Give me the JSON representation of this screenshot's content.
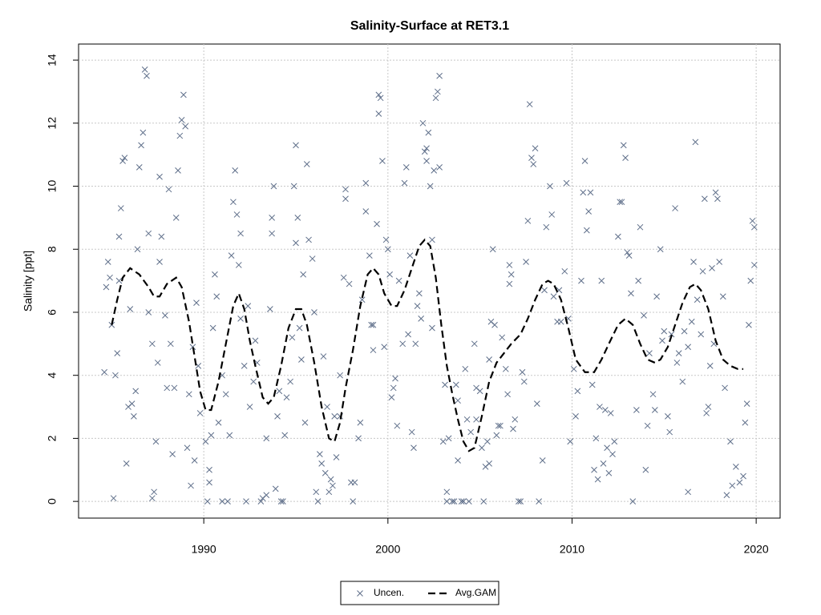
{
  "chart_data": {
    "type": "scatter",
    "title": "Salinity-Surface at RET3.1",
    "y_label": "Salinity [ppt]",
    "xlim": [
      1983.2,
      2021.3
    ],
    "ylim": [
      -0.53,
      14.51
    ],
    "xticks": [
      1990,
      2000,
      2010,
      2020
    ],
    "yticks": [
      0,
      2,
      4,
      6,
      8,
      10,
      12,
      14
    ],
    "grid": true,
    "legend": "bottom",
    "series": [
      {
        "name": "Uncen.",
        "type": "scatter",
        "color": "#5f6f8a",
        "x": [
          1984.6,
          1984.7,
          1984.8,
          1984.9,
          1985.0,
          1985.1,
          1985.2,
          1985.3,
          1985.4,
          1985.4,
          1985.5,
          1985.6,
          1985.7,
          1985.8,
          1985.9,
          1986.0,
          1986.1,
          1986.2,
          1986.3,
          1986.4,
          1986.5,
          1986.6,
          1986.7,
          1986.8,
          1986.9,
          1987.0,
          1987.0,
          1987.2,
          1987.2,
          1987.3,
          1987.4,
          1987.5,
          1987.6,
          1987.6,
          1987.7,
          1987.9,
          1988.0,
          1988.1,
          1988.2,
          1988.3,
          1988.4,
          1988.5,
          1988.6,
          1988.7,
          1988.8,
          1988.9,
          1989.0,
          1989.1,
          1989.2,
          1989.3,
          1989.4,
          1989.5,
          1989.6,
          1989.7,
          1989.8,
          1990.1,
          1990.2,
          1990.3,
          1990.3,
          1990.4,
          1990.5,
          1990.6,
          1990.7,
          1990.8,
          1991.0,
          1991.0,
          1991.2,
          1991.3,
          1991.4,
          1991.5,
          1991.6,
          1991.7,
          1991.8,
          1991.9,
          1992.0,
          1992.0,
          1992.2,
          1992.3,
          1992.4,
          1992.5,
          1992.7,
          1992.8,
          1992.9,
          1993.1,
          1993.2,
          1993.4,
          1993.4,
          1993.6,
          1993.7,
          1993.7,
          1993.8,
          1993.9,
          1994.0,
          1994.1,
          1994.2,
          1994.3,
          1994.4,
          1994.5,
          1994.7,
          1994.8,
          1994.9,
          1995.0,
          1995.0,
          1995.1,
          1995.2,
          1995.3,
          1995.4,
          1995.5,
          1995.6,
          1995.7,
          1995.9,
          1996.0,
          1996.1,
          1996.2,
          1996.3,
          1996.4,
          1996.5,
          1996.6,
          1996.7,
          1996.8,
          1996.9,
          1997.0,
          1997.1,
          1997.2,
          1997.4,
          1997.4,
          1997.6,
          1997.7,
          1997.7,
          1997.9,
          1998.0,
          1998.1,
          1998.2,
          1998.4,
          1998.5,
          1998.6,
          1998.8,
          1998.8,
          1999.0,
          1999.1,
          1999.2,
          1999.2,
          1999.4,
          1999.5,
          1999.5,
          1999.6,
          1999.7,
          1999.8,
          1999.9,
          2000.0,
          2000.1,
          2000.2,
          2000.3,
          2000.4,
          2000.5,
          2000.6,
          2000.8,
          2000.9,
          2001.0,
          2001.1,
          2001.2,
          2001.3,
          2001.4,
          2001.5,
          2001.6,
          2001.7,
          2001.8,
          2001.9,
          2002.0,
          2002.1,
          2002.1,
          2002.2,
          2002.3,
          2002.4,
          2002.4,
          2002.5,
          2002.6,
          2002.7,
          2002.8,
          2002.8,
          2003.0,
          2003.1,
          2003.2,
          2003.2,
          2003.3,
          2003.5,
          2003.6,
          2003.7,
          2003.8,
          2003.8,
          2004.0,
          2004.1,
          2004.2,
          2004.3,
          2004.4,
          2004.5,
          2004.7,
          2004.8,
          2004.8,
          2005.0,
          2005.1,
          2005.2,
          2005.3,
          2005.4,
          2005.5,
          2005.5,
          2005.6,
          2005.7,
          2005.8,
          2005.9,
          2006.0,
          2006.1,
          2006.2,
          2006.4,
          2006.5,
          2006.6,
          2006.6,
          2006.7,
          2006.8,
          2006.9,
          2007.1,
          2007.2,
          2007.3,
          2007.4,
          2007.5,
          2007.6,
          2007.7,
          2007.8,
          2007.9,
          2008.0,
          2008.1,
          2008.2,
          2008.4,
          2008.5,
          2008.6,
          2008.8,
          2008.9,
          2009.0,
          2009.2,
          2009.3,
          2009.4,
          2009.6,
          2009.7,
          2009.8,
          2009.9,
          2010.1,
          2010.2,
          2010.3,
          2010.5,
          2010.6,
          2010.7,
          2010.8,
          2010.9,
          2011.0,
          2011.1,
          2011.2,
          2011.3,
          2011.4,
          2011.5,
          2011.6,
          2011.7,
          2011.8,
          2011.9,
          2012.0,
          2012.1,
          2012.2,
          2012.3,
          2012.5,
          2012.6,
          2012.7,
          2012.8,
          2012.9,
          2013.0,
          2013.1,
          2013.2,
          2013.3,
          2013.5,
          2013.6,
          2013.7,
          2013.9,
          2014.0,
          2014.1,
          2014.2,
          2014.4,
          2014.5,
          2014.6,
          2014.8,
          2014.9,
          2015.0,
          2015.2,
          2015.3,
          2015.4,
          2015.6,
          2015.7,
          2015.8,
          2016.0,
          2016.1,
          2016.3,
          2016.3,
          2016.5,
          2016.6,
          2016.7,
          2016.8,
          2017.0,
          2017.1,
          2017.2,
          2017.3,
          2017.4,
          2017.5,
          2017.6,
          2017.7,
          2017.8,
          2017.9,
          2018.0,
          2018.2,
          2018.3,
          2018.4,
          2018.6,
          2018.7,
          2018.9,
          2019.1,
          2019.3,
          2019.4,
          2019.5,
          2019.6,
          2019.7,
          2019.8,
          2019.9,
          2019.9
        ],
        "values": [
          4.1,
          6.8,
          7.6,
          7.1,
          5.6,
          0.1,
          4.0,
          4.7,
          8.4,
          7.0,
          9.3,
          10.8,
          10.9,
          1.2,
          3.0,
          6.1,
          3.1,
          2.7,
          3.5,
          8.0,
          10.6,
          11.3,
          11.7,
          13.7,
          13.5,
          8.5,
          6.0,
          5.0,
          0.1,
          0.3,
          1.9,
          4.4,
          7.6,
          10.3,
          8.4,
          5.9,
          3.6,
          9.9,
          5.0,
          1.5,
          3.6,
          9.0,
          10.5,
          11.6,
          12.1,
          12.9,
          11.9,
          1.7,
          3.4,
          0.5,
          4.9,
          1.3,
          6.3,
          4.3,
          2.8,
          1.9,
          0.0,
          1.0,
          0.6,
          2.1,
          5.5,
          7.2,
          6.5,
          2.5,
          0.0,
          4.0,
          3.4,
          0.0,
          2.1,
          7.8,
          9.5,
          10.5,
          9.1,
          7.5,
          5.8,
          8.5,
          4.3,
          0.0,
          6.2,
          3.0,
          3.8,
          5.1,
          4.4,
          0.0,
          0.1,
          0.2,
          2.0,
          6.1,
          9.0,
          8.5,
          10.0,
          0.4,
          2.7,
          3.5,
          0.0,
          0.0,
          2.1,
          3.3,
          3.8,
          5.2,
          10.0,
          11.3,
          8.2,
          9.0,
          5.5,
          4.5,
          7.2,
          2.5,
          10.7,
          8.3,
          7.7,
          6.0,
          0.3,
          0.0,
          1.5,
          1.2,
          4.6,
          0.9,
          3.0,
          0.3,
          0.7,
          0.5,
          2.7,
          1.4,
          4.0,
          2.7,
          7.1,
          9.9,
          9.6,
          6.9,
          0.6,
          0.0,
          0.6,
          2.0,
          2.5,
          6.4,
          9.2,
          10.1,
          7.8,
          5.6,
          5.6,
          4.8,
          8.8,
          12.3,
          12.9,
          12.8,
          10.8,
          4.9,
          8.3,
          8.0,
          7.2,
          3.3,
          3.6,
          3.9,
          2.4,
          7.0,
          5.0,
          10.1,
          10.6,
          5.3,
          7.8,
          2.2,
          1.7,
          5.0,
          6.2,
          6.6,
          5.8,
          12.0,
          11.1,
          10.8,
          11.2,
          11.7,
          10.0,
          5.5,
          8.3,
          10.5,
          12.8,
          13.0,
          13.5,
          10.6,
          1.9,
          3.7,
          0.3,
          0.0,
          2.0,
          0.0,
          0.0,
          3.7,
          1.3,
          3.2,
          0.0,
          0.0,
          4.2,
          2.6,
          0.0,
          2.2,
          5.0,
          3.6,
          2.6,
          3.5,
          1.7,
          0.0,
          1.1,
          1.9,
          1.2,
          4.5,
          5.7,
          8.0,
          5.6,
          2.1,
          2.4,
          2.4,
          5.2,
          4.2,
          3.4,
          7.5,
          6.9,
          7.2,
          2.3,
          2.6,
          0.0,
          0.0,
          4.1,
          3.8,
          7.6,
          8.9,
          12.6,
          10.9,
          10.7,
          11.2,
          3.1,
          0.0,
          1.3,
          6.7,
          8.7,
          10.0,
          9.1,
          6.5,
          5.7,
          6.7,
          5.7,
          7.3,
          10.1,
          5.8,
          1.9,
          4.2,
          2.7,
          3.5,
          7.0,
          9.8,
          10.8,
          8.6,
          9.2,
          9.8,
          3.7,
          1.0,
          2.0,
          0.7,
          3.0,
          7.0,
          1.2,
          2.9,
          1.7,
          0.9,
          2.8,
          1.5,
          1.9,
          8.4,
          9.5,
          9.5,
          11.3,
          10.9,
          7.9,
          7.8,
          6.6,
          0.0,
          2.9,
          7.0,
          8.7,
          5.9,
          1.0,
          2.4,
          4.7,
          3.4,
          2.9,
          6.5,
          8.0,
          5.1,
          5.4,
          2.7,
          2.2,
          5.3,
          9.3,
          4.4,
          4.7,
          3.8,
          5.4,
          4.9,
          0.3,
          5.7,
          7.6,
          11.4,
          6.4,
          5.3,
          7.3,
          9.6,
          2.8,
          3.0,
          4.3,
          7.4,
          5.0,
          9.8,
          9.6,
          7.6,
          6.5,
          3.6,
          0.2,
          1.9,
          0.5,
          1.1,
          0.6,
          0.8,
          2.5,
          3.1,
          5.6,
          7.0,
          8.9,
          8.7,
          7.5
        ]
      },
      {
        "name": "Avg.GAM",
        "type": "line",
        "color": "#000000",
        "x": [
          1985.0,
          1985.3,
          1985.6,
          1986.0,
          1986.5,
          1987.0,
          1987.3,
          1987.6,
          1988.0,
          1988.5,
          1988.8,
          1989.2,
          1989.5,
          1989.8,
          1990.1,
          1990.4,
          1990.8,
          1991.2,
          1991.6,
          1991.9,
          1992.2,
          1992.5,
          1992.8,
          1993.2,
          1993.5,
          1993.8,
          1994.2,
          1994.6,
          1995.0,
          1995.3,
          1995.6,
          1996.0,
          1996.4,
          1996.8,
          1997.1,
          1997.4,
          1997.7,
          1998.1,
          1998.5,
          1998.9,
          1999.2,
          1999.5,
          1999.8,
          2000.2,
          2000.5,
          2000.9,
          2001.3,
          2001.7,
          2002.0,
          2002.3,
          2002.6,
          2002.9,
          2003.2,
          2003.5,
          2003.8,
          2004.1,
          2004.4,
          2004.7,
          2005.1,
          2005.5,
          2005.9,
          2006.3,
          2006.7,
          2007.2,
          2007.6,
          2008.0,
          2008.4,
          2008.7,
          2009.0,
          2009.4,
          2009.8,
          2010.2,
          2010.7,
          2011.2,
          2011.6,
          2012.0,
          2012.5,
          2012.9,
          2013.3,
          2013.7,
          2014.1,
          2014.5,
          2014.8,
          2015.2,
          2015.6,
          2016.0,
          2016.4,
          2016.7,
          2017.0,
          2017.4,
          2017.8,
          2018.2,
          2018.6,
          2019.0,
          2019.3
        ],
        "values": [
          5.6,
          6.4,
          7.1,
          7.4,
          7.2,
          6.8,
          6.5,
          6.5,
          6.9,
          7.1,
          6.8,
          5.7,
          4.6,
          3.5,
          2.9,
          2.9,
          3.8,
          5.0,
          6.2,
          6.6,
          6.1,
          5.1,
          4.3,
          3.3,
          3.1,
          3.3,
          4.3,
          5.5,
          6.1,
          6.1,
          5.6,
          4.4,
          3.0,
          2.0,
          1.9,
          2.5,
          3.6,
          4.8,
          6.2,
          7.2,
          7.4,
          7.2,
          6.6,
          6.2,
          6.2,
          6.7,
          7.4,
          8.1,
          8.3,
          8.1,
          7.1,
          5.6,
          4.3,
          3.4,
          2.6,
          1.9,
          1.6,
          1.7,
          2.7,
          3.8,
          4.4,
          4.7,
          5.0,
          5.3,
          5.8,
          6.4,
          6.9,
          7.0,
          6.9,
          6.4,
          5.5,
          4.5,
          4.1,
          4.1,
          4.5,
          5.0,
          5.6,
          5.8,
          5.6,
          5.0,
          4.5,
          4.4,
          4.5,
          4.9,
          5.6,
          6.3,
          6.8,
          6.9,
          6.7,
          6.1,
          5.1,
          4.5,
          4.3,
          4.2,
          4.2
        ]
      }
    ]
  }
}
